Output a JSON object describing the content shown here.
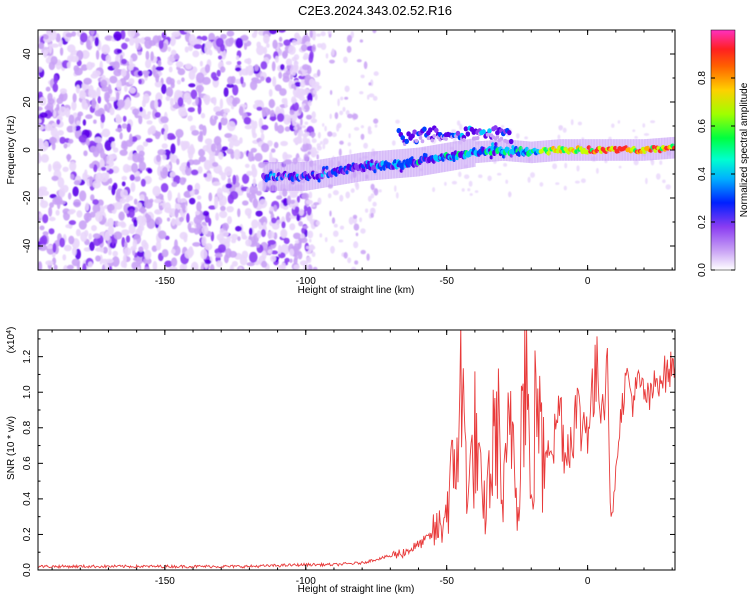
{
  "figure": {
    "title": "C2E3.2024.343.02.52.R16"
  },
  "colors": {
    "snr_line": "#e83a3a",
    "axis": "#000000",
    "background": "#ffffff",
    "colormap": [
      "#ffffff",
      "#e9d6fb",
      "#c9a2f5",
      "#8a3cf2",
      "#5a00e8",
      "#0040ff",
      "#00c8ff",
      "#00ff60",
      "#c8ff00",
      "#ffb000",
      "#ff2a2a",
      "#ff2aa0"
    ]
  },
  "chart_data": [
    {
      "type": "heatmap",
      "title": "C2E3.2024.343.02.52.R16",
      "xlabel": "Height of straight line (km)",
      "ylabel": "Frequency (Hz)",
      "xlim": [
        -195,
        31
      ],
      "ylim": [
        -50,
        50
      ],
      "x_ticks": [
        -150,
        -100,
        -50,
        0
      ],
      "y_ticks": [
        -40,
        -20,
        0,
        20,
        40
      ],
      "colorbar": {
        "label": "Normalized spectral amplitude",
        "range": [
          0,
          1
        ],
        "ticks": [
          "0.0",
          "0.2",
          "0.4",
          "0.6",
          "0.8"
        ]
      },
      "description_points": {
        "noise_region_x": [
          -195,
          -105
        ],
        "signal_track": {
          "x": [
            -115,
            -100,
            -90,
            -80,
            -70,
            -60,
            -50,
            -40,
            -30,
            -20,
            -10,
            0,
            10,
            20,
            31
          ],
          "y": [
            -11,
            -11,
            -9,
            -7,
            -6,
            -5,
            -3,
            -1,
            0,
            -1,
            0,
            0,
            0,
            0,
            1
          ]
        },
        "upper_branch": {
          "x": [
            -65,
            -55,
            -45,
            -35,
            -28
          ],
          "y": [
            5,
            7,
            7,
            8,
            6
          ]
        }
      }
    },
    {
      "type": "line",
      "xlabel": "Height of straight line (km)",
      "ylabel": "SNR (10 * v/v)",
      "scale_label": "(x10^4)",
      "xlim": [
        -195,
        31
      ],
      "ylim": [
        0,
        1.35
      ],
      "x_ticks": [
        -150,
        -100,
        -50,
        0
      ],
      "y_ticks": [
        "0.0",
        "0.2",
        "0.4",
        "0.6",
        "0.8",
        "1.0",
        "1.2"
      ],
      "series": [
        {
          "x": [
            -195,
            -180,
            -160,
            -140,
            -120,
            -100,
            -90,
            -80,
            -75,
            -70,
            -65,
            -60,
            -55,
            -52,
            -50,
            -47,
            -45,
            -42,
            -40,
            -37,
            -35,
            -32,
            -30,
            -27,
            -25,
            -22,
            -20,
            -18,
            -16,
            -14,
            -12,
            -10,
            -8,
            -6,
            -4,
            -2,
            0,
            2,
            4,
            6,
            7,
            8,
            9,
            10,
            12,
            14,
            16,
            18,
            20,
            22,
            24,
            26,
            28,
            31
          ],
          "y": [
            0.02,
            0.02,
            0.02,
            0.02,
            0.02,
            0.03,
            0.03,
            0.04,
            0.06,
            0.08,
            0.1,
            0.14,
            0.2,
            0.25,
            0.35,
            0.6,
            1.0,
            0.45,
            0.75,
            0.3,
            0.5,
            0.85,
            0.35,
            0.9,
            0.4,
            1.25,
            0.3,
            1.1,
            0.55,
            0.8,
            0.7,
            0.95,
            0.65,
            0.75,
            0.9,
            0.8,
            0.85,
            1.0,
            1.1,
            0.9,
            1.35,
            0.35,
            0.3,
            0.6,
            0.9,
            1.1,
            0.95,
            1.05,
            1.0,
            0.95,
            1.05,
            1.1,
            1.1,
            1.15
          ]
        }
      ]
    }
  ]
}
